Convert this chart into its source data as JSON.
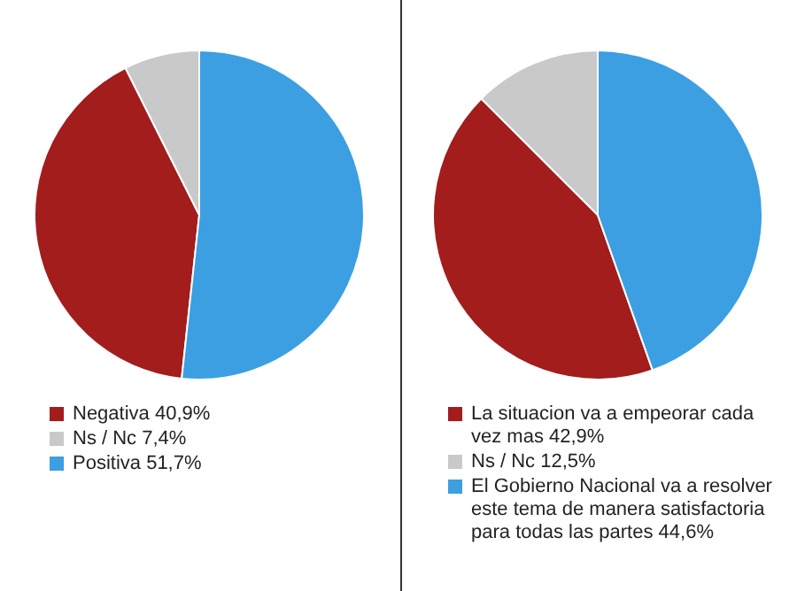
{
  "chart_data": [
    {
      "type": "pie",
      "categories": [
        "Negativa",
        "Ns / Nc",
        "Positiva"
      ],
      "values": [
        40.9,
        7.4,
        51.7
      ],
      "value_labels": [
        "40,9%",
        "7,4%",
        "51,7%"
      ],
      "colors": [
        "#a31d1d",
        "#c9c9c9",
        "#3b9fe2"
      ],
      "legend": "bottom"
    },
    {
      "type": "pie",
      "categories": [
        "La situacion va a empeorar cada vez mas",
        "Ns / Nc",
        "El Gobierno Nacional va a resolver este tema de manera satisfactoria para todas las partes"
      ],
      "values": [
        42.9,
        12.5,
        44.6
      ],
      "value_labels": [
        "42,9%",
        "12,5%",
        "44,6%"
      ],
      "colors": [
        "#a31d1d",
        "#c9c9c9",
        "#3b9fe2"
      ],
      "legend": "bottom"
    }
  ]
}
